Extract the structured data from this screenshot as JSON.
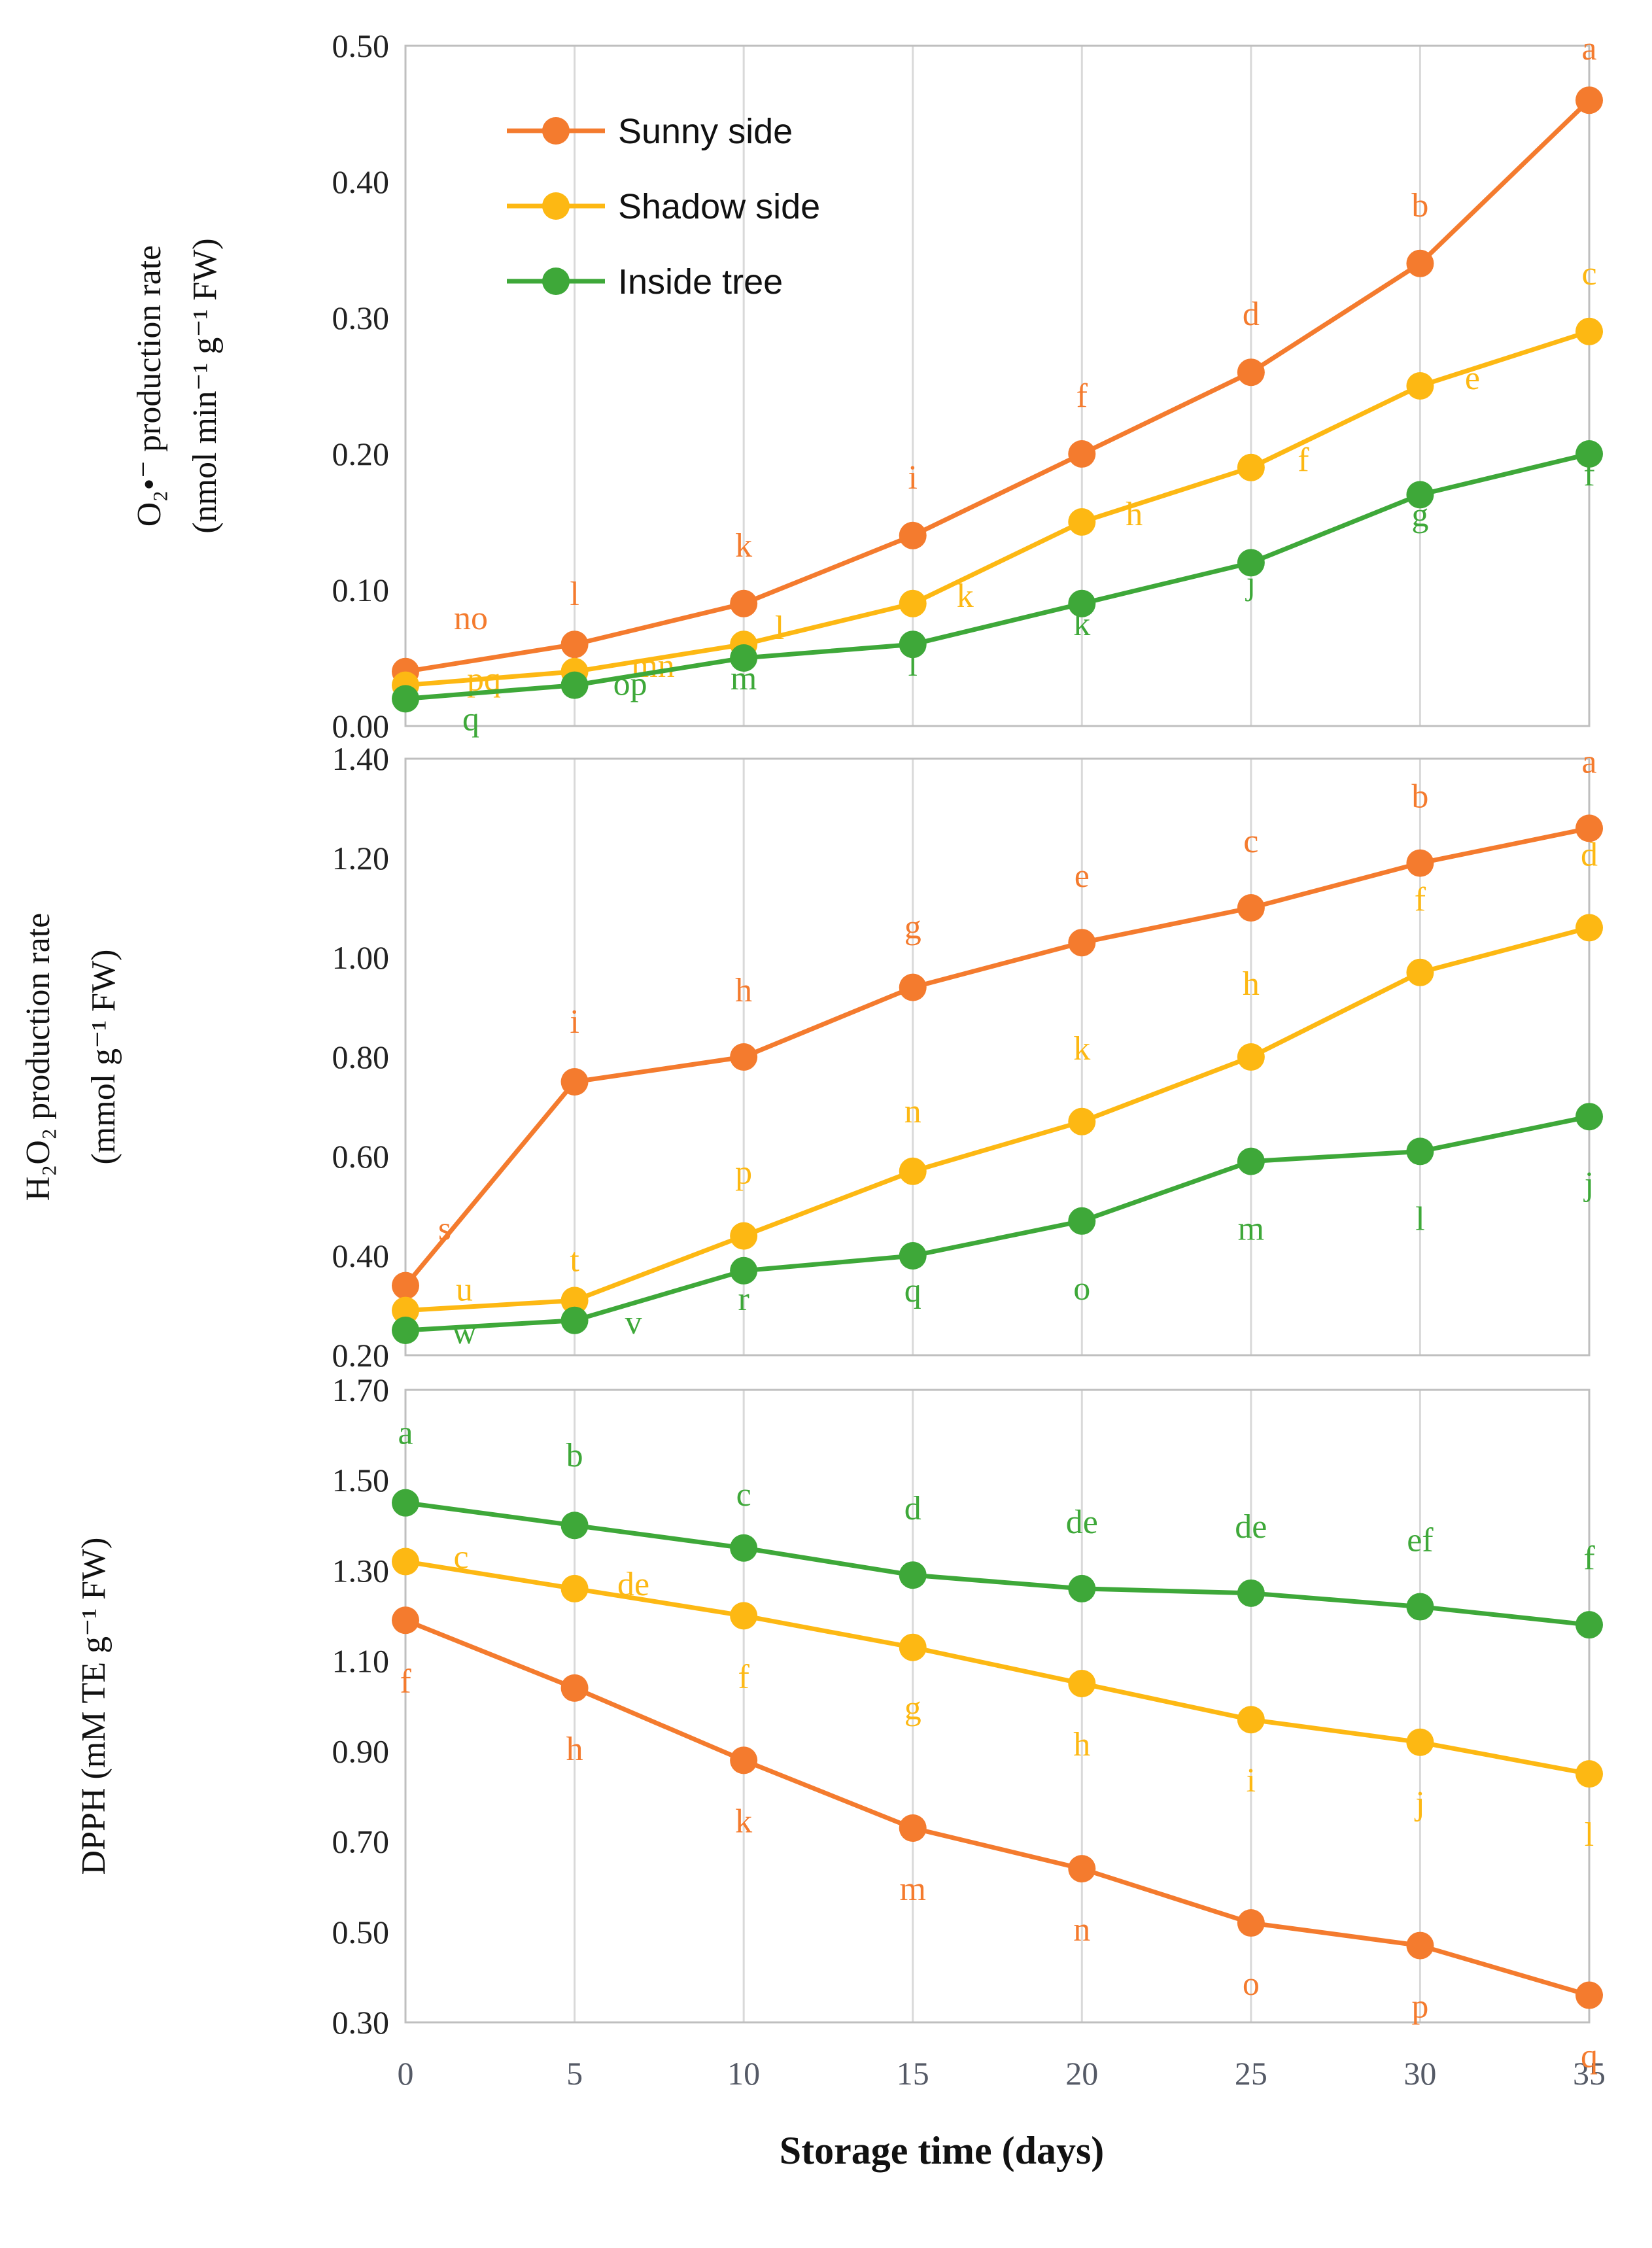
{
  "colors": {
    "sunny": "#f47b2e",
    "shadow": "#fdb813",
    "inside": "#3ea839"
  },
  "legend": [
    {
      "key": "sunny",
      "label": "Sunny side"
    },
    {
      "key": "shadow",
      "label": "Shadow side"
    },
    {
      "key": "inside",
      "label": "Inside tree"
    }
  ],
  "x_axis_label": "Storage time (days)",
  "chart_data": [
    {
      "type": "line",
      "title": "",
      "ylabel_line1": "O₂•⁻ production rate",
      "ylabel_line2": "(nmol min⁻¹ g⁻¹ FW)",
      "x": [
        0,
        5,
        10,
        15,
        20,
        25,
        30,
        35
      ],
      "xlim": [
        0,
        35
      ],
      "ylim": [
        0,
        0.5
      ],
      "yticks": [
        "0.00",
        "0.10",
        "0.20",
        "0.30",
        "0.40",
        "0.50"
      ],
      "series": [
        {
          "name": "Sunny side",
          "key": "sunny",
          "values": [
            0.04,
            0.06,
            0.09,
            0.14,
            0.2,
            0.26,
            0.34,
            0.46
          ],
          "letters": [
            "no",
            "l",
            "k",
            "i",
            "f",
            "d",
            "b",
            "a"
          ]
        },
        {
          "name": "Shadow side",
          "key": "shadow",
          "values": [
            0.03,
            0.04,
            0.06,
            0.09,
            0.15,
            0.19,
            0.25,
            0.29
          ],
          "letters": [
            "pq",
            "mn",
            "l",
            "k",
            "h",
            "f",
            "e",
            "c"
          ]
        },
        {
          "name": "Inside tree",
          "key": "inside",
          "values": [
            0.02,
            0.03,
            0.05,
            0.06,
            0.09,
            0.12,
            0.17,
            0.2
          ],
          "letters": [
            "q",
            "op",
            "m",
            "l",
            "k",
            "j",
            "g",
            "f"
          ]
        }
      ]
    },
    {
      "type": "line",
      "title": "",
      "ylabel_line1": "H₂O₂ production rate",
      "ylabel_line2": "(mmol g⁻¹ FW)",
      "x": [
        0,
        5,
        10,
        15,
        20,
        25,
        30,
        35
      ],
      "xlim": [
        0,
        35
      ],
      "ylim": [
        0.2,
        1.4
      ],
      "yticks": [
        "0.20",
        "0.40",
        "0.60",
        "0.80",
        "1.00",
        "1.20",
        "1.40"
      ],
      "series": [
        {
          "name": "Sunny side",
          "key": "sunny",
          "values": [
            0.34,
            0.75,
            0.8,
            0.94,
            1.03,
            1.1,
            1.19,
            1.26
          ],
          "letters": [
            "s",
            "i",
            "h",
            "g",
            "e",
            "c",
            "b",
            "a"
          ]
        },
        {
          "name": "Shadow side",
          "key": "shadow",
          "values": [
            0.29,
            0.31,
            0.44,
            0.57,
            0.67,
            0.8,
            0.97,
            1.06
          ],
          "letters": [
            "u",
            "t",
            "p",
            "n",
            "k",
            "h",
            "f",
            "d"
          ]
        },
        {
          "name": "Inside tree",
          "key": "inside",
          "values": [
            0.25,
            0.27,
            0.37,
            0.4,
            0.47,
            0.59,
            0.61,
            0.68
          ],
          "letters": [
            "w",
            "v",
            "r",
            "q",
            "o",
            "m",
            "l",
            "j"
          ]
        }
      ]
    },
    {
      "type": "line",
      "title": "",
      "ylabel_line1": "DPPH (mM TE g⁻¹ FW)",
      "ylabel_line2": "",
      "x": [
        0,
        5,
        10,
        15,
        20,
        25,
        30,
        35
      ],
      "x_tick_labels": [
        "0",
        "5",
        "10",
        "15",
        "20",
        "25",
        "30",
        "35"
      ],
      "xlim": [
        0,
        35
      ],
      "ylim": [
        0.3,
        1.7
      ],
      "yticks": [
        "0.30",
        "0.50",
        "0.70",
        "0.90",
        "1.10",
        "1.30",
        "1.50",
        "1.70"
      ],
      "series": [
        {
          "name": "Sunny side",
          "key": "sunny",
          "values": [
            1.19,
            1.04,
            0.88,
            0.73,
            0.64,
            0.52,
            0.47,
            0.36
          ],
          "letters": [
            "f",
            "h",
            "k",
            "m",
            "n",
            "o",
            "p",
            "q"
          ]
        },
        {
          "name": "Shadow side",
          "key": "shadow",
          "values": [
            1.32,
            1.26,
            1.2,
            1.13,
            1.05,
            0.97,
            0.92,
            0.85
          ],
          "letters": [
            "c",
            "de",
            "f",
            "g",
            "h",
            "i",
            "j",
            "l"
          ]
        },
        {
          "name": "Inside tree",
          "key": "inside",
          "values": [
            1.45,
            1.4,
            1.35,
            1.29,
            1.26,
            1.25,
            1.22,
            1.18
          ],
          "letters": [
            "a",
            "b",
            "c",
            "d",
            "de",
            "de",
            "ef",
            "f"
          ]
        }
      ]
    }
  ]
}
